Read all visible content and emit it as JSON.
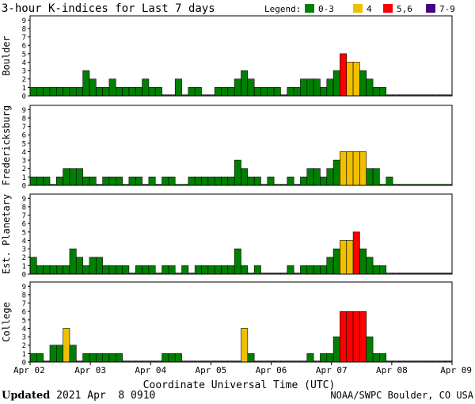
{
  "chart_data": {
    "type": "bar",
    "title": "3-hour K-indices for Last 7 days",
    "legend": {
      "label": "Legend:",
      "items": [
        {
          "label": "0-3",
          "color": "#008000",
          "min": 0,
          "max": 3
        },
        {
          "label": "4",
          "color": "#f0c000",
          "min": 4,
          "max": 4
        },
        {
          "label": "5,6",
          "color": "#ff0000",
          "min": 5,
          "max": 6
        },
        {
          "label": "7-9",
          "color": "#4b0082",
          "min": 7,
          "max": 9
        }
      ]
    },
    "xlabel": "Coordinate Universal Time (UTC)",
    "x_ticks": [
      "Apr 02",
      "Apr 03",
      "Apr 04",
      "Apr 05",
      "Apr 06",
      "Apr 07",
      "Apr 08",
      "Apr 09"
    ],
    "ylim": [
      0,
      9
    ],
    "y_ticks": [
      0,
      1,
      2,
      3,
      4,
      5,
      6,
      7,
      8,
      9
    ],
    "grid": false,
    "series": [
      {
        "name": "Boulder",
        "values": [
          1,
          1,
          1,
          1,
          1,
          1,
          1,
          1,
          3,
          2,
          1,
          1,
          2,
          1,
          1,
          1,
          1,
          2,
          1,
          1,
          0,
          0,
          2,
          0,
          1,
          1,
          0,
          0,
          1,
          1,
          1,
          2,
          3,
          2,
          1,
          1,
          1,
          1,
          0,
          1,
          1,
          2,
          2,
          2,
          1,
          2,
          3,
          5,
          4,
          4,
          3,
          2,
          1,
          1,
          0,
          0,
          0,
          0,
          0,
          0,
          0,
          0,
          0,
          0
        ]
      },
      {
        "name": "Fredericksburg",
        "values": [
          1,
          1,
          1,
          0,
          1,
          2,
          2,
          2,
          1,
          1,
          0,
          1,
          1,
          1,
          0,
          1,
          1,
          0,
          1,
          0,
          1,
          1,
          0,
          0,
          1,
          1,
          1,
          1,
          1,
          1,
          1,
          3,
          2,
          1,
          1,
          0,
          1,
          0,
          0,
          1,
          0,
          1,
          2,
          2,
          1,
          2,
          3,
          4,
          4,
          4,
          4,
          2,
          2,
          0,
          1,
          0,
          0,
          0,
          0,
          0,
          0,
          0,
          0,
          0
        ]
      },
      {
        "name": "Est. Planetary",
        "values": [
          2,
          1,
          1,
          1,
          1,
          1,
          3,
          2,
          1,
          2,
          2,
          1,
          1,
          1,
          1,
          0,
          1,
          1,
          1,
          0,
          1,
          1,
          0,
          1,
          0,
          1,
          1,
          1,
          1,
          1,
          1,
          3,
          1,
          0,
          1,
          0,
          0,
          0,
          0,
          1,
          0,
          1,
          1,
          1,
          1,
          2,
          3,
          4,
          4,
          5,
          3,
          2,
          1,
          1,
          0,
          0,
          0,
          0,
          0,
          0,
          0,
          0,
          0,
          0
        ]
      },
      {
        "name": "College",
        "values": [
          1,
          1,
          0,
          2,
          2,
          4,
          2,
          0,
          1,
          1,
          1,
          1,
          1,
          1,
          0,
          0,
          0,
          0,
          0,
          0,
          1,
          1,
          1,
          0,
          0,
          0,
          0,
          0,
          0,
          0,
          0,
          0,
          4,
          1,
          0,
          0,
          0,
          0,
          0,
          0,
          0,
          0,
          1,
          0,
          1,
          1,
          3,
          6,
          6,
          6,
          6,
          3,
          1,
          1,
          0,
          0,
          0,
          0,
          0,
          0,
          0,
          0,
          0,
          0
        ]
      }
    ]
  },
  "footer": {
    "updated_label": "Updated",
    "updated_time": "2021 Apr  8 0910",
    "credit": "NOAA/SWPC Boulder, CO USA"
  }
}
